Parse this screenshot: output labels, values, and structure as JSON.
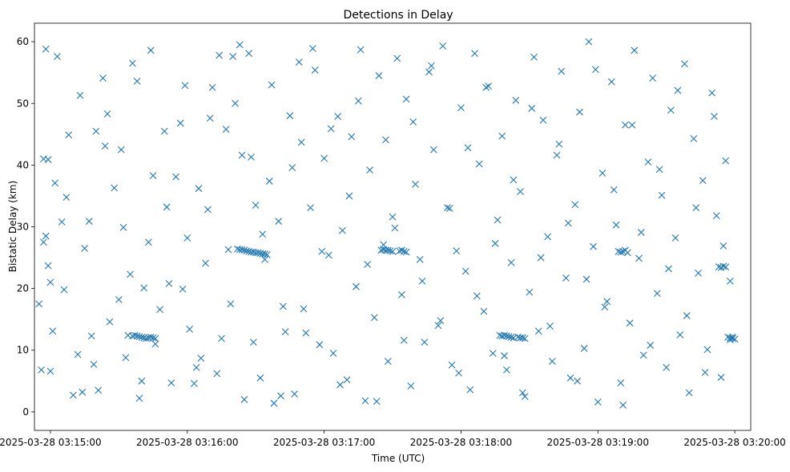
{
  "chart_data": {
    "type": "scatter",
    "title": "Detections in Delay",
    "xlabel": "Time (UTC)",
    "ylabel": "Bistatic Delay (km)",
    "x_unit": "time",
    "xlim": [
      "2025-03-28 03:14:53",
      "2025-03-28 03:20:07"
    ],
    "ylim": [
      -3,
      63
    ],
    "x_ticks": [
      {
        "value": "2025-03-28 03:15:00",
        "label": "2025-03-28 03:15:00"
      },
      {
        "value": "2025-03-28 03:16:00",
        "label": "2025-03-28 03:16:00"
      },
      {
        "value": "2025-03-28 03:17:00",
        "label": "2025-03-28 03:17:00"
      },
      {
        "value": "2025-03-28 03:18:00",
        "label": "2025-03-28 03:18:00"
      },
      {
        "value": "2025-03-28 03:19:00",
        "label": "2025-03-28 03:19:00"
      },
      {
        "value": "2025-03-28 03:20:00",
        "label": "2025-03-28 03:20:00"
      }
    ],
    "y_ticks": [
      0,
      10,
      20,
      30,
      40,
      50,
      60
    ],
    "marker": "x",
    "color": "#1f77b4",
    "grid": false,
    "legend": "none",
    "series": [
      {
        "x": [
          "03:14:55",
          "03:14:56",
          "03:14:57",
          "03:14:57",
          "03:14:58",
          "03:14:58",
          "03:14:59",
          "03:14:59",
          "03:15:00",
          "03:15:00",
          "03:15:02",
          "03:15:03",
          "03:15:05",
          "03:15:06",
          "03:15:08",
          "03:15:10",
          "03:15:12",
          "03:15:14",
          "03:15:15",
          "03:15:17",
          "03:15:18",
          "03:15:20",
          "03:15:21",
          "03:15:23",
          "03:15:24",
          "03:15:26",
          "03:15:28",
          "03:15:30",
          "03:15:31",
          "03:15:33",
          "03:15:35",
          "03:15:36",
          "03:15:38",
          "03:15:40",
          "03:15:41",
          "03:15:43",
          "03:15:44",
          "03:15:46",
          "03:15:48",
          "03:15:50",
          "03:15:51",
          "03:15:53",
          "03:15:55",
          "03:15:57",
          "03:15:58",
          "03:16:00",
          "03:16:01",
          "03:16:03",
          "03:16:05",
          "03:16:06",
          "03:16:08",
          "03:16:10",
          "03:16:11",
          "03:16:13",
          "03:16:15",
          "03:16:17",
          "03:16:18",
          "03:16:20",
          "03:16:21",
          "03:16:23",
          "03:16:25",
          "03:16:27",
          "03:16:28",
          "03:16:30",
          "03:16:32",
          "03:16:34",
          "03:16:36",
          "03:16:38",
          "03:16:40",
          "03:16:42",
          "03:16:43",
          "03:16:45",
          "03:16:47",
          "03:16:49",
          "03:16:50",
          "03:16:52",
          "03:16:54",
          "03:16:56",
          "03:16:58",
          "03:17:00",
          "03:17:02",
          "03:17:04",
          "03:17:06",
          "03:17:08",
          "03:17:10",
          "03:17:12",
          "03:17:14",
          "03:17:16",
          "03:17:18",
          "03:17:20",
          "03:17:22",
          "03:17:24",
          "03:17:26",
          "03:17:28",
          "03:17:30",
          "03:17:32",
          "03:17:34",
          "03:17:36",
          "03:17:38",
          "03:17:40",
          "03:17:42",
          "03:17:44",
          "03:17:46",
          "03:17:48",
          "03:17:50",
          "03:17:52",
          "03:17:54",
          "03:17:56",
          "03:17:58",
          "03:18:00",
          "03:18:02",
          "03:18:04",
          "03:18:06",
          "03:18:08",
          "03:18:10",
          "03:18:12",
          "03:18:14",
          "03:18:16",
          "03:18:18",
          "03:18:20",
          "03:18:22",
          "03:18:24",
          "03:18:26",
          "03:18:28",
          "03:18:30",
          "03:18:32",
          "03:18:34",
          "03:18:36",
          "03:18:38",
          "03:18:40",
          "03:18:42",
          "03:18:44",
          "03:18:46",
          "03:18:48",
          "03:18:50",
          "03:18:52",
          "03:18:54",
          "03:18:56",
          "03:18:58",
          "03:19:00",
          "03:19:02",
          "03:19:04",
          "03:19:06",
          "03:19:08",
          "03:19:10",
          "03:19:12",
          "03:19:14",
          "03:19:16",
          "03:19:18",
          "03:19:20",
          "03:19:22",
          "03:19:24",
          "03:19:26",
          "03:19:28",
          "03:19:30",
          "03:19:32",
          "03:19:34",
          "03:19:36",
          "03:19:38",
          "03:19:40",
          "03:19:42",
          "03:19:44",
          "03:19:46",
          "03:19:48",
          "03:19:50",
          "03:19:52",
          "03:19:54",
          "03:19:56",
          "03:19:58",
          "03:19:59",
          "03:15:01",
          "03:15:07",
          "03:15:13",
          "03:15:19",
          "03:15:25",
          "03:15:32",
          "03:15:39",
          "03:15:45",
          "03:15:52",
          "03:15:59",
          "03:16:04",
          "03:16:09",
          "03:16:14",
          "03:16:19",
          "03:16:24",
          "03:16:29",
          "03:16:33",
          "03:16:37",
          "03:16:41",
          "03:16:46",
          "03:16:51",
          "03:16:55",
          "03:16:59",
          "03:17:03",
          "03:17:07",
          "03:17:11",
          "03:17:15",
          "03:17:19",
          "03:17:23",
          "03:17:27",
          "03:17:31",
          "03:17:35",
          "03:17:39",
          "03:17:43",
          "03:17:47",
          "03:17:51",
          "03:17:55",
          "03:17:59",
          "03:18:03",
          "03:18:07",
          "03:18:11",
          "03:18:15",
          "03:18:19",
          "03:18:23",
          "03:18:27",
          "03:18:31",
          "03:18:35",
          "03:18:39",
          "03:18:43",
          "03:18:47",
          "03:18:51",
          "03:18:55",
          "03:18:59",
          "03:19:03",
          "03:19:07",
          "03:19:11",
          "03:19:15",
          "03:19:19",
          "03:19:23",
          "03:19:27",
          "03:19:31",
          "03:19:35",
          "03:19:39",
          "03:19:43",
          "03:19:47",
          "03:19:51",
          "03:19:55",
          "03:19:58",
          "03:15:34",
          "03:15:36",
          "03:15:37",
          "03:15:38",
          "03:15:39",
          "03:15:40",
          "03:15:41",
          "03:15:42",
          "03:15:43",
          "03:15:44",
          "03:15:45",
          "03:15:46",
          "03:16:22",
          "03:16:23",
          "03:16:24",
          "03:16:25",
          "03:16:26",
          "03:16:27",
          "03:16:28",
          "03:16:29",
          "03:16:30",
          "03:16:31",
          "03:16:32",
          "03:16:33",
          "03:16:34",
          "03:16:35",
          "03:17:25",
          "03:17:26",
          "03:17:27",
          "03:17:28",
          "03:17:29",
          "03:17:30",
          "03:17:33",
          "03:17:34",
          "03:17:35",
          "03:17:36",
          "03:18:17",
          "03:18:18",
          "03:18:19",
          "03:18:20",
          "03:18:21",
          "03:18:22",
          "03:18:23",
          "03:18:25",
          "03:18:26",
          "03:18:27",
          "03:18:28",
          "03:19:09",
          "03:19:10",
          "03:19:11",
          "03:19:12",
          "03:19:13",
          "03:19:53",
          "03:19:54",
          "03:19:55",
          "03:19:56",
          "03:19:57",
          "03:19:58",
          "03:19:59",
          "03:20:00"
        ],
        "y": [
          17.5,
          6.8,
          41.0,
          27.5,
          28.5,
          58.8,
          40.9,
          23.7,
          21.0,
          6.6,
          37.1,
          57.6,
          30.8,
          19.8,
          44.9,
          2.7,
          9.3,
          3.2,
          26.5,
          30.9,
          12.3,
          45.5,
          3.5,
          54.1,
          43.1,
          14.6,
          36.3,
          18.2,
          42.5,
          8.8,
          22.3,
          56.5,
          53.6,
          5.0,
          20.1,
          27.5,
          58.6,
          11.0,
          16.6,
          45.5,
          33.2,
          4.7,
          38.1,
          46.8,
          19.9,
          28.2,
          13.4,
          4.6,
          36.2,
          8.7,
          24.1,
          47.6,
          52.6,
          6.2,
          11.9,
          45.8,
          26.3,
          57.6,
          50.0,
          59.5,
          2.0,
          58.1,
          41.3,
          33.5,
          5.5,
          24.7,
          37.4,
          1.4,
          30.9,
          17.1,
          13.0,
          48.0,
          2.9,
          56.7,
          43.7,
          12.8,
          33.1,
          55.4,
          10.9,
          41.1,
          25.4,
          9.5,
          47.9,
          29.4,
          5.2,
          44.6,
          20.3,
          58.7,
          1.8,
          39.2,
          15.3,
          54.5,
          27.1,
          8.2,
          31.6,
          57.3,
          19.0,
          50.7,
          4.2,
          36.9,
          24.7,
          11.3,
          55.1,
          42.5,
          14.0,
          59.3,
          33.1,
          7.6,
          26.1,
          49.3,
          22.8,
          3.6,
          58.1,
          40.2,
          16.3,
          52.8,
          9.5,
          31.1,
          44.7,
          6.8,
          24.2,
          50.5,
          35.7,
          2.5,
          19.4,
          57.5,
          13.1,
          47.3,
          28.4,
          8.2,
          41.6,
          55.2,
          21.7,
          5.5,
          33.6,
          48.6,
          10.3,
          60.0,
          26.8,
          1.6,
          38.7,
          17.9,
          53.5,
          30.3,
          4.7,
          46.5,
          14.4,
          58.6,
          24.9,
          9.2,
          40.5,
          54.1,
          19.2,
          35.1,
          7.2,
          48.9,
          28.2,
          12.5,
          56.4,
          3.1,
          44.3,
          22.5,
          37.5,
          10.1,
          51.7,
          31.8,
          5.6,
          40.7,
          21.2,
          12.1,
          13.1,
          34.8,
          51.3,
          7.7,
          48.3,
          29.9,
          2.2,
          38.3,
          20.8,
          52.9,
          7.2,
          32.8,
          57.8,
          17.5,
          41.6,
          11.3,
          28.8,
          53.0,
          2.6,
          39.6,
          16.7,
          58.9,
          26.0,
          45.9,
          4.4,
          35.0,
          50.4,
          23.9,
          1.7,
          44.1,
          29.8,
          11.6,
          47.0,
          21.2,
          56.1,
          14.8,
          33.0,
          6.3,
          42.8,
          18.8,
          52.6,
          27.3,
          9.1,
          37.6,
          3.1,
          49.2,
          25.0,
          13.9,
          43.4,
          30.6,
          5.0,
          21.5,
          55.5,
          17.0,
          36.0,
          1.1,
          46.5,
          29.1,
          10.8,
          39.3,
          23.2,
          52.1,
          15.6,
          33.1,
          6.4,
          47.9,
          26.9,
          11.7,
          12.4,
          12.3,
          12.4,
          12.3,
          12.2,
          12.1,
          12.0,
          11.9,
          12.0,
          12.1,
          12.0,
          11.9,
          26.4,
          26.3,
          26.3,
          26.2,
          26.1,
          26.0,
          25.9,
          25.9,
          25.8,
          25.8,
          25.7,
          25.6,
          25.6,
          25.5,
          26.2,
          26.3,
          26.2,
          26.2,
          26.1,
          26.0,
          26.1,
          26.2,
          26.0,
          25.9,
          12.4,
          12.3,
          12.4,
          12.3,
          12.2,
          12.1,
          12.0,
          12.1,
          12.0,
          12.0,
          11.9,
          26.0,
          25.9,
          26.0,
          26.2,
          25.8,
          23.5,
          23.4,
          23.6,
          23.5,
          12.1,
          12.0,
          11.9,
          11.8
        ]
      }
    ]
  }
}
